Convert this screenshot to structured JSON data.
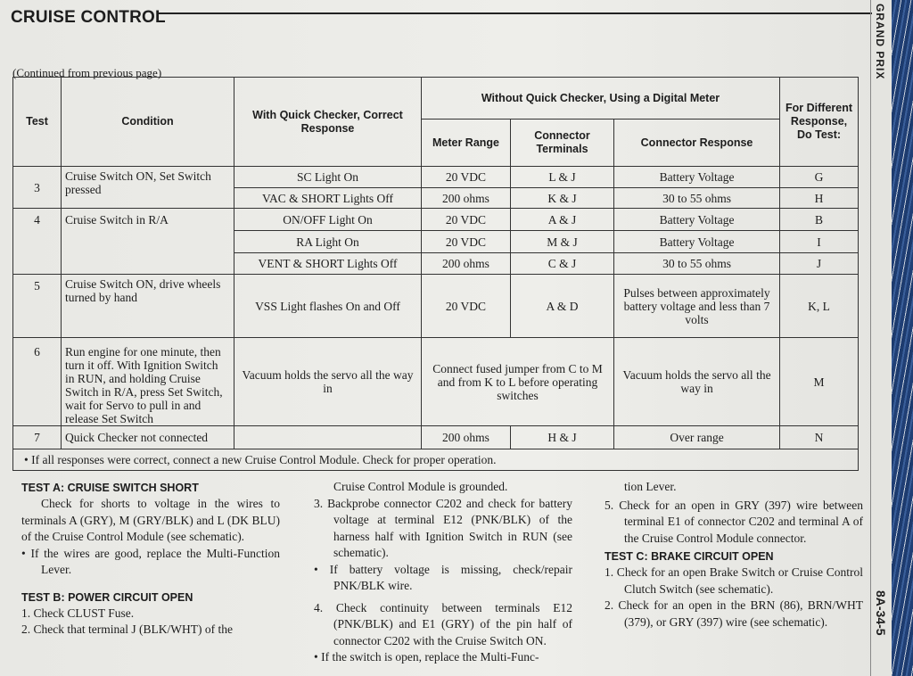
{
  "title": "CRUISE CONTROL",
  "side_label": "GRAND PRIX",
  "page_number": "8A-34-5",
  "continued": "(Continued from previous page)",
  "table": {
    "headers": {
      "test": "Test",
      "condition": "Condition",
      "quick": "With Quick Checker, Correct Response",
      "without": "Without Quick Checker, Using a Digital Meter",
      "meter": "Meter Range",
      "terminals": "Connector Terminals",
      "response": "Connector Response",
      "do_test": "For Different Response, Do Test:"
    },
    "rows": [
      {
        "test": "3",
        "condition": "Cruise Switch ON, Set Switch pressed",
        "quick": "SC Light On",
        "meter": "20 VDC",
        "terminals": "L & J",
        "response": "Battery Voltage",
        "do_test": "G"
      },
      {
        "quick": "VAC & SHORT Lights Off",
        "meter": "200 ohms",
        "terminals": "K & J",
        "response": "30 to 55 ohms",
        "do_test": "H"
      },
      {
        "test": "4",
        "condition": "Cruise Switch in R/A",
        "quick": "ON/OFF Light On",
        "meter": "20 VDC",
        "terminals": "A & J",
        "response": "Battery Voltage",
        "do_test": "B"
      },
      {
        "quick": "RA Light On",
        "meter": "20 VDC",
        "terminals": "M & J",
        "response": "Battery Voltage",
        "do_test": "I"
      },
      {
        "quick": "VENT & SHORT Lights Off",
        "meter": "200 ohms",
        "terminals": "C & J",
        "response": "30 to 55 ohms",
        "do_test": "J"
      },
      {
        "test": "5",
        "condition": "Cruise Switch ON, drive wheels turned by hand",
        "quick": "VSS Light flashes On and Off",
        "meter": "20 VDC",
        "terminals": "A & D",
        "response": "Pulses between approximately battery voltage and less than 7 volts",
        "do_test": "K, L"
      },
      {
        "test": "6",
        "condition": "Run engine for one minute, then turn it off. With Ignition Switch in RUN, and holding Cruise Switch in R/A, press Set Switch, wait for Servo to pull in and release Set Switch",
        "quick": "Vacuum holds the servo all the way in",
        "meter_span": "Connect fused jumper from C to M and from K to L before operating switches",
        "response": "Vacuum holds the servo all the way in",
        "do_test": "M"
      },
      {
        "test": "7",
        "condition": "Quick Checker not connected",
        "quick": "",
        "meter": "200 ohms",
        "terminals": "H & J",
        "response": "Over range",
        "do_test": "N"
      }
    ],
    "footnote": "• If all responses were correct, connect a new Cruise Control Module. Check for proper operation."
  },
  "col1": {
    "test_a_title": "TEST A: CRUISE SWITCH SHORT",
    "test_a_text": "Check for shorts to voltage in the wires to terminals A (GRY), M (GRY/BLK) and L (DK BLU) of the Cruise Control Module (see schematic).",
    "test_a_bullet": "• If the wires are good, replace the Multi-Function Lever.",
    "test_b_title": "TEST B: POWER CIRCUIT OPEN",
    "test_b_1": "1. Check CLUST Fuse.",
    "test_b_2": "2. Check that terminal J (BLK/WHT) of the"
  },
  "col2": {
    "cont": "Cruise Control Module is grounded.",
    "s3": "3. Backprobe connector C202 and check for battery voltage at terminal E12 (PNK/BLK) of the harness half with Ignition Switch in RUN (see schematic).",
    "b1": "• If battery voltage is missing, check/repair PNK/BLK wire.",
    "s4": "4. Check continuity between terminals E12 (PNK/BLK) and E1 (GRY) of the pin half of connector C202 with the Cruise Switch ON.",
    "b2": "• If the switch is open, replace the Multi-Func-"
  },
  "col3": {
    "cont": "tion Lever.",
    "s5": "5. Check for an open in GRY (397) wire between terminal E1 of connector C202 and terminal A of the Cruise Control Module connector.",
    "test_c_title": "TEST C: BRAKE CIRCUIT OPEN",
    "c1": "1. Check for an open Brake Switch or Cruise Control Clutch Switch (see schematic).",
    "c2": "2. Check for an open in the BRN (86), BRN/WHT (379), or GRY (397) wire (see schematic)."
  }
}
